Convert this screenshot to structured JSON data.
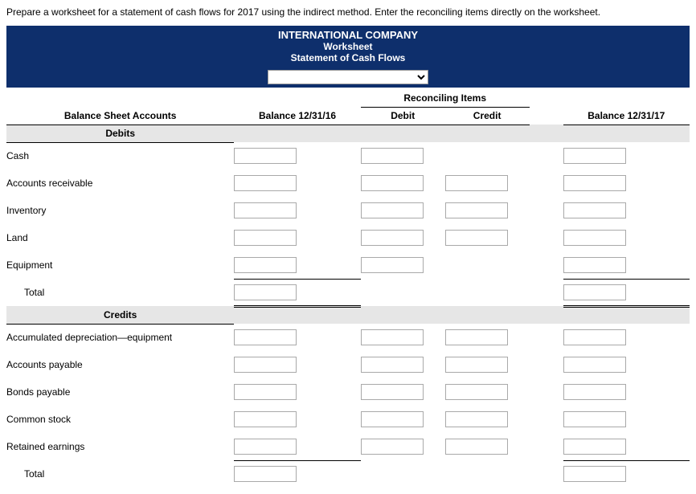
{
  "instruction": "Prepare a worksheet for a statement of cash flows for 2017 using the indirect method. Enter the reconciling items directly on the worksheet.",
  "header": {
    "company": "INTERNATIONAL COMPANY",
    "title": "Worksheet",
    "subtitle": "Statement of Cash Flows"
  },
  "columns": {
    "accounts": "Balance Sheet Accounts",
    "bal_begin": "Balance 12/31/16",
    "reconciling": "Reconciling Items",
    "debit": "Debit",
    "credit": "Credit",
    "bal_end": "Balance 12/31/17"
  },
  "sections": {
    "debits": "Debits",
    "credits": "Credits"
  },
  "rows": {
    "cash": "Cash",
    "ar": "Accounts receivable",
    "inventory": "Inventory",
    "land": "Land",
    "equipment": "Equipment",
    "total_debits": "Total",
    "accdep": "Accumulated depreciation—equipment",
    "ap": "Accounts payable",
    "bonds": "Bonds payable",
    "cstock": "Common stock",
    "retearn": "Retained earnings",
    "total_credits": "Total"
  },
  "colors": {
    "header_bg": "#0e2f6c",
    "section_bg": "#e6e6e6",
    "border": "#000000",
    "input_border": "#a9a9a9"
  }
}
